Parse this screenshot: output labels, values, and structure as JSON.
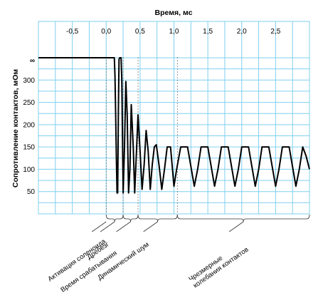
{
  "chart_data": {
    "type": "line",
    "title": "",
    "xlabel": "Время, мс",
    "ylabel": "Сопротивление контактов, мОм",
    "x_ticks": [
      "-0,5",
      "0,0",
      "0,5",
      "1,0",
      "1,5",
      "2,0",
      "2,5"
    ],
    "x_tick_values": [
      -0.5,
      0.0,
      0.5,
      1.0,
      1.5,
      2.0,
      2.5
    ],
    "y_ticks": [
      "50",
      "100",
      "150",
      "200",
      "250",
      "300"
    ],
    "y_tick_values": [
      50,
      100,
      150,
      200,
      250,
      300
    ],
    "y_infinity_label": "∞",
    "y_infinity_value": 350,
    "xlim": [
      -1.0,
      3.0
    ],
    "ylim": [
      0,
      350
    ],
    "grid": true,
    "series": [
      {
        "values_xy": [
          [
            -1.0,
            350
          ],
          [
            0.1,
            350
          ],
          [
            0.11,
            350
          ],
          [
            0.12,
            350
          ],
          [
            0.13,
            310
          ],
          [
            0.14,
            220
          ],
          [
            0.15,
            130
          ],
          [
            0.16,
            47
          ],
          [
            0.17,
            47
          ],
          [
            0.18,
            230
          ],
          [
            0.19,
            347
          ],
          [
            0.2,
            350
          ],
          [
            0.21,
            350
          ],
          [
            0.22,
            350
          ],
          [
            0.23,
            300
          ],
          [
            0.25,
            47
          ],
          [
            0.27,
            150
          ],
          [
            0.29,
            297
          ],
          [
            0.31,
            220
          ],
          [
            0.33,
            47
          ],
          [
            0.35,
            100
          ],
          [
            0.37,
            245
          ],
          [
            0.4,
            150
          ],
          [
            0.42,
            47
          ],
          [
            0.45,
            150
          ],
          [
            0.47,
            222
          ],
          [
            0.5,
            140
          ],
          [
            0.53,
            55
          ],
          [
            0.56,
            110
          ],
          [
            0.59,
            187
          ],
          [
            0.62,
            140
          ],
          [
            0.65,
            55
          ],
          [
            0.68,
            110
          ],
          [
            0.71,
            150
          ],
          [
            0.74,
            155
          ],
          [
            0.78,
            110
          ],
          [
            0.82,
            55
          ],
          [
            0.86,
            100
          ],
          [
            0.9,
            150
          ],
          [
            0.95,
            150
          ],
          [
            1.0,
            62
          ],
          [
            1.04,
            100
          ],
          [
            1.1,
            150
          ],
          [
            1.2,
            150
          ],
          [
            1.3,
            62
          ],
          [
            1.35,
            100
          ],
          [
            1.4,
            150
          ],
          [
            1.5,
            150
          ],
          [
            1.6,
            62
          ],
          [
            1.65,
            100
          ],
          [
            1.7,
            150
          ],
          [
            1.8,
            150
          ],
          [
            1.9,
            62
          ],
          [
            1.95,
            100
          ],
          [
            2.0,
            150
          ],
          [
            2.1,
            150
          ],
          [
            2.2,
            62
          ],
          [
            2.25,
            100
          ],
          [
            2.3,
            150
          ],
          [
            2.4,
            150
          ],
          [
            2.5,
            62
          ],
          [
            2.55,
            100
          ],
          [
            2.6,
            150
          ],
          [
            2.7,
            150
          ],
          [
            2.8,
            62
          ],
          [
            2.85,
            100
          ],
          [
            2.9,
            150
          ],
          [
            2.95,
            130
          ],
          [
            3.0,
            100
          ]
        ]
      }
    ],
    "annotations": [
      {
        "text": "Активация соленоида",
        "lines": [
          "Активация соленоида"
        ],
        "x_start": 0.0,
        "x_end": 0.0
      },
      {
        "text": "Время срабатывания",
        "lines": [
          "Время срабатывания"
        ],
        "x_start": 0.0,
        "x_end": 0.25
      },
      {
        "text": "Дребезг",
        "lines": [
          "Дребезг"
        ],
        "x_start": 0.25,
        "x_end": 0.47
      },
      {
        "text": "Динамический шум",
        "lines": [
          "Динамический шум"
        ],
        "x_start": 0.47,
        "x_end": 1.05
      },
      {
        "text": "Чрезмерные колебания контактов",
        "lines": [
          "Чрезмерные",
          "колебания контактов"
        ],
        "x_start": 1.05,
        "x_end": 3.0
      }
    ]
  }
}
